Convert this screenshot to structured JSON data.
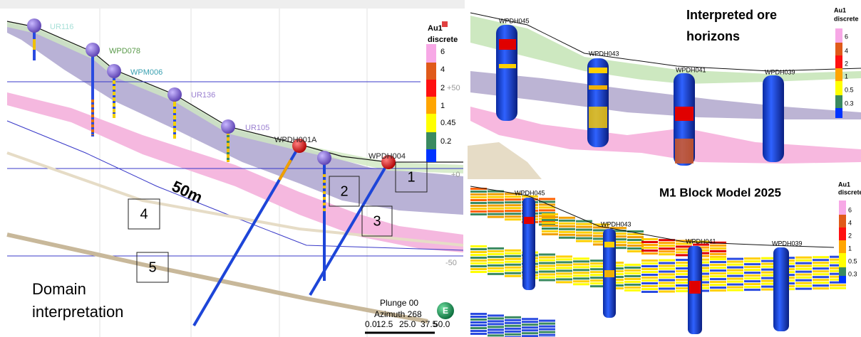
{
  "left_panel": {
    "holes": [
      "UR116",
      "WPD078",
      "WPM006",
      "UR136",
      "UR105",
      "WPDH001A",
      "WPDH004"
    ],
    "legend": {
      "title": [
        "Au1",
        "discrete"
      ],
      "labels": [
        "6",
        "4",
        "2",
        "1",
        "0.45",
        "0.2"
      ]
    },
    "elevation_labels": [
      "+50",
      "+0",
      "-50"
    ],
    "domains": [
      "1",
      "2",
      "3",
      "4",
      "5"
    ],
    "scale_label": "50m",
    "caption": [
      "Domain",
      "interpretation"
    ],
    "view": {
      "plunge": "Plunge 00",
      "azimuth": "Azimuth 268",
      "scale_ticks": [
        "0.0",
        "12.5",
        "25.0",
        "37.5",
        "50.0"
      ]
    },
    "compass": "E"
  },
  "top_right_panel": {
    "title": [
      "Interpreted ore",
      "horizons"
    ],
    "holes": [
      "WPDH045",
      "WPDH043",
      "WPDH041",
      "WPDH039"
    ],
    "legend": {
      "title": [
        "Au1",
        "discrete"
      ],
      "labels": [
        "6",
        "4",
        "2",
        "1",
        "0.5",
        "0.3"
      ]
    }
  },
  "bottom_right_panel": {
    "title": "M1 Block Model 2025",
    "holes": [
      "WPDH045",
      "WPDH043",
      "WPDH041",
      "WPDH039"
    ],
    "legend": {
      "title": [
        "Au1",
        "discrete"
      ],
      "labels": [
        "6",
        "4",
        "2",
        "1",
        "0.5",
        "0.3"
      ]
    }
  }
}
